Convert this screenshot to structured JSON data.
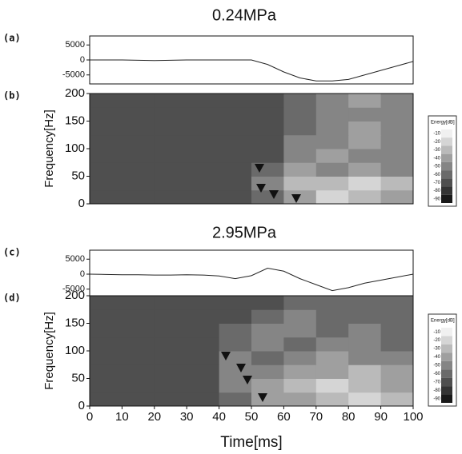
{
  "chart_data": [
    {
      "type": "line",
      "title": "0.24MPa",
      "panel": "(a)",
      "x": [
        0,
        5,
        10,
        15,
        20,
        25,
        30,
        35,
        40,
        45,
        50,
        55,
        60,
        65,
        70,
        75,
        80,
        85,
        90,
        95,
        100
      ],
      "y": [
        0,
        0,
        0,
        -100,
        -200,
        -100,
        0,
        0,
        0,
        0,
        0,
        -1500,
        -4000,
        -6000,
        -7000,
        -7000,
        -6500,
        -5000,
        -3500,
        -2000,
        -500
      ],
      "color": "#222222",
      "xlim": [
        0,
        100
      ],
      "ylim": [
        -8000,
        8000
      ],
      "yticks": [
        5000,
        0,
        -5000
      ]
    },
    {
      "type": "heatmap",
      "panel": "(b)",
      "ylabel": "Frequency[Hz]",
      "xlim": [
        0,
        100
      ],
      "ylim": [
        0,
        200
      ],
      "yticks": [
        0,
        50,
        100,
        150,
        200
      ],
      "z": [
        [
          -70,
          -70,
          -70,
          -70,
          -70,
          -60,
          -40,
          -20,
          -30,
          -40
        ],
        [
          -70,
          -70,
          -70,
          -70,
          -70,
          -50,
          -30,
          -30,
          -20,
          -30
        ],
        [
          -70,
          -70,
          -70,
          -70,
          -70,
          -60,
          -40,
          -50,
          -40,
          -50
        ],
        [
          -70,
          -70,
          -70,
          -70,
          -70,
          -70,
          -50,
          -40,
          -50,
          -50
        ],
        [
          -70,
          -70,
          -70,
          -70,
          -70,
          -70,
          -50,
          -50,
          -40,
          -50
        ],
        [
          -70,
          -70,
          -70,
          -70,
          -70,
          -70,
          -60,
          -50,
          -40,
          -50
        ],
        [
          -70,
          -70,
          -70,
          -70,
          -70,
          -70,
          -60,
          -50,
          -50,
          -50
        ],
        [
          -70,
          -70,
          -70,
          -70,
          -70,
          -70,
          -60,
          -50,
          -40,
          -50
        ]
      ],
      "colorbar_label": "Energy[dB]",
      "colorbar_ticks": [
        -10,
        -20,
        -30,
        -40,
        -50,
        -60,
        -70,
        -80,
        -90
      ]
    },
    {
      "type": "line",
      "title": "2.95MPa",
      "panel": "(c)",
      "x": [
        0,
        5,
        10,
        15,
        20,
        25,
        30,
        35,
        40,
        45,
        50,
        55,
        60,
        65,
        70,
        75,
        80,
        85,
        90,
        95,
        100
      ],
      "y": [
        0,
        -100,
        -200,
        -200,
        -300,
        -300,
        -200,
        -300,
        -600,
        -1500,
        -500,
        2000,
        1000,
        -1500,
        -3500,
        -5500,
        -4500,
        -3000,
        -2000,
        -1000,
        0
      ],
      "color": "#222222",
      "xlim": [
        0,
        100
      ],
      "ylim": [
        -8000,
        8000
      ],
      "yticks": [
        5000,
        0,
        -5000
      ]
    },
    {
      "type": "heatmap",
      "panel": "(d)",
      "ylabel": "Frequency[Hz]",
      "xlim": [
        0,
        100
      ],
      "ylim": [
        0,
        200
      ],
      "yticks": [
        0,
        50,
        100,
        150,
        200
      ],
      "xticks": [
        0,
        10,
        20,
        30,
        40,
        50,
        60,
        70,
        80,
        90,
        100
      ],
      "xlabel": "Time[ms]",
      "z": [
        [
          -70,
          -70,
          -70,
          -70,
          -60,
          -40,
          -40,
          -30,
          -20,
          -30
        ],
        [
          -70,
          -70,
          -70,
          -70,
          -50,
          -40,
          -30,
          -20,
          -30,
          -40
        ],
        [
          -70,
          -70,
          -70,
          -70,
          -50,
          -50,
          -40,
          -40,
          -30,
          -40
        ],
        [
          -70,
          -70,
          -70,
          -70,
          -50,
          -60,
          -50,
          -40,
          -50,
          -50
        ],
        [
          -70,
          -70,
          -70,
          -70,
          -60,
          -50,
          -60,
          -50,
          -50,
          -60
        ],
        [
          -70,
          -70,
          -70,
          -70,
          -60,
          -50,
          -50,
          -60,
          -50,
          -60
        ],
        [
          -70,
          -70,
          -70,
          -70,
          -70,
          -60,
          -50,
          -60,
          -60,
          -60
        ],
        [
          -70,
          -70,
          -70,
          -70,
          -70,
          -70,
          -60,
          -60,
          -60,
          -60
        ]
      ],
      "colorbar_label": "Energy[dB]",
      "colorbar_ticks": [
        -10,
        -20,
        -30,
        -40,
        -50,
        -60,
        -70,
        -80,
        -90
      ]
    }
  ]
}
